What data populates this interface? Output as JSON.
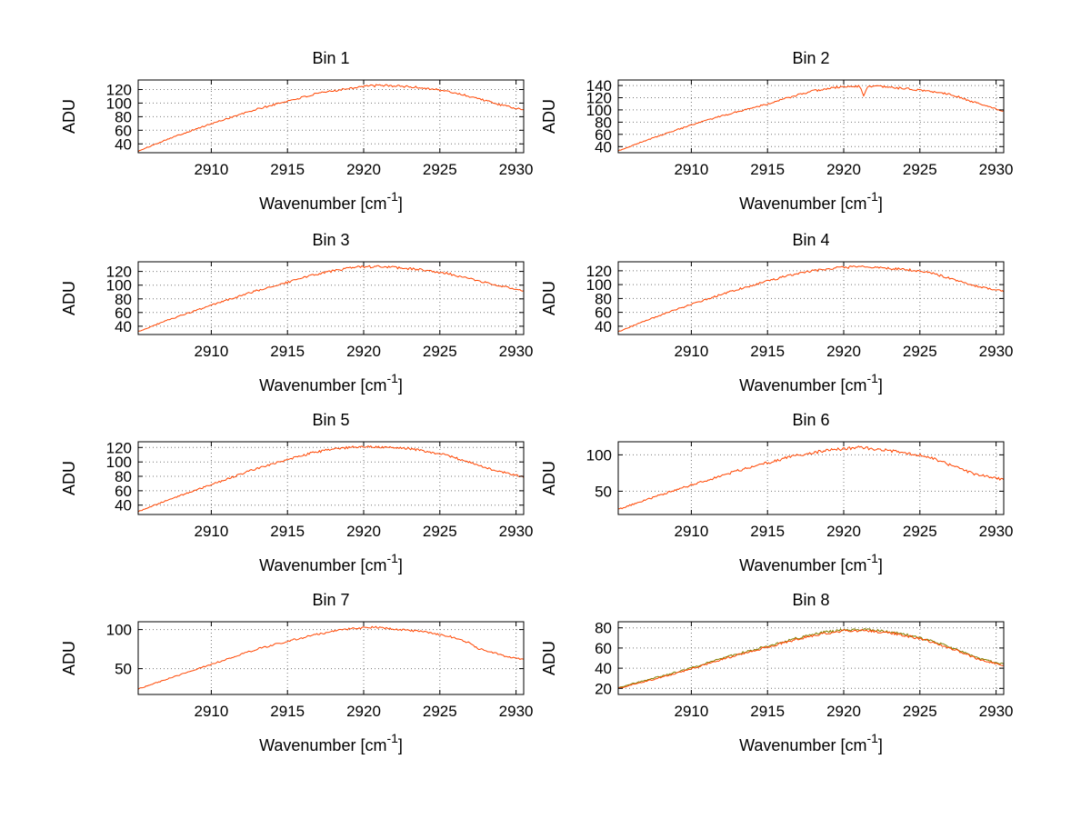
{
  "figure": {
    "background": "#ffffff",
    "axis_color": "#000000",
    "grid_color": "#777777",
    "line_color": "#ff4500",
    "ylabel": "ADU",
    "xlabel": {
      "main": "Wavenumber [cm",
      "sup": "-1",
      "close": "]"
    }
  },
  "chart_data": [
    {
      "type": "line",
      "title": "Bin 1",
      "xlabel": "Wavenumber [cm^-1]",
      "ylabel": "ADU",
      "x_range": [
        2905.2,
        2930.5
      ],
      "y_range": [
        27,
        134
      ],
      "x_ticks": [
        2910,
        2915,
        2920,
        2925,
        2930
      ],
      "y_ticks": [
        40,
        60,
        80,
        100,
        120
      ],
      "grid": true,
      "series": [
        {
          "name": "spectrum",
          "color": "#ff4500",
          "noise": 1.8,
          "seed": 101,
          "keypoints": [
            [
              2905.2,
              29
            ],
            [
              2907,
              46
            ],
            [
              2909,
              62
            ],
            [
              2911,
              77
            ],
            [
              2913,
              91
            ],
            [
              2915,
              103
            ],
            [
              2917,
              114
            ],
            [
              2918.5,
              120
            ],
            [
              2920,
              125
            ],
            [
              2921.5,
              126
            ],
            [
              2923,
              124
            ],
            [
              2924.5,
              121
            ],
            [
              2926,
              115
            ],
            [
              2927.5,
              107
            ],
            [
              2929,
              97
            ],
            [
              2930.5,
              90
            ]
          ]
        }
      ]
    },
    {
      "type": "line",
      "title": "Bin 2",
      "xlabel": "Wavenumber [cm^-1]",
      "ylabel": "ADU",
      "x_range": [
        2905.2,
        2930.5
      ],
      "y_range": [
        30,
        149
      ],
      "x_ticks": [
        2910,
        2915,
        2920,
        2925,
        2930
      ],
      "y_ticks": [
        40,
        60,
        80,
        100,
        120,
        140
      ],
      "grid": true,
      "series": [
        {
          "name": "spectrum",
          "color": "#ff4500",
          "noise": 1.8,
          "seed": 202,
          "keypoints": [
            [
              2905.2,
              33
            ],
            [
              2907,
              50
            ],
            [
              2909,
              67
            ],
            [
              2911,
              83
            ],
            [
              2913,
              97
            ],
            [
              2915,
              110
            ],
            [
              2916.5,
              121
            ],
            [
              2918,
              131
            ],
            [
              2919.5,
              137
            ],
            [
              2921,
              139
            ],
            [
              2922.5,
              138
            ],
            [
              2924,
              135
            ],
            [
              2925.5,
              131
            ],
            [
              2927,
              126
            ],
            [
              2928.5,
              113
            ],
            [
              2930.5,
              98
            ]
          ],
          "spikes": [
            {
              "x": 2921.3,
              "dy": -17,
              "width": 0.25
            }
          ]
        }
      ]
    },
    {
      "type": "line",
      "title": "Bin 3",
      "xlabel": "Wavenumber [cm^-1]",
      "ylabel": "ADU",
      "x_range": [
        2905.2,
        2930.5
      ],
      "y_range": [
        28,
        134
      ],
      "x_ticks": [
        2910,
        2915,
        2920,
        2925,
        2930
      ],
      "y_ticks": [
        40,
        60,
        80,
        100,
        120
      ],
      "grid": true,
      "series": [
        {
          "name": "spectrum",
          "color": "#ff4500",
          "noise": 1.8,
          "seed": 303,
          "keypoints": [
            [
              2905.2,
              32
            ],
            [
              2907,
              48
            ],
            [
              2909,
              63
            ],
            [
              2911,
              78
            ],
            [
              2913,
              92
            ],
            [
              2915,
              104
            ],
            [
              2916.5,
              114
            ],
            [
              2918,
              121
            ],
            [
              2919.5,
              126
            ],
            [
              2921,
              127
            ],
            [
              2922.5,
              125
            ],
            [
              2924,
              122
            ],
            [
              2925.5,
              117
            ],
            [
              2927,
              109
            ],
            [
              2928.5,
              101
            ],
            [
              2930.5,
              92
            ]
          ]
        }
      ]
    },
    {
      "type": "line",
      "title": "Bin 4",
      "xlabel": "Wavenumber [cm^-1]",
      "ylabel": "ADU",
      "x_range": [
        2905.2,
        2930.5
      ],
      "y_range": [
        28,
        133
      ],
      "x_ticks": [
        2910,
        2915,
        2920,
        2925,
        2930
      ],
      "y_ticks": [
        40,
        60,
        80,
        100,
        120
      ],
      "grid": true,
      "series": [
        {
          "name": "spectrum",
          "color": "#ff4500",
          "noise": 1.8,
          "seed": 404,
          "keypoints": [
            [
              2905.2,
              32
            ],
            [
              2907,
              48
            ],
            [
              2909,
              64
            ],
            [
              2911,
              79
            ],
            [
              2913,
              93
            ],
            [
              2915,
              105
            ],
            [
              2916.5,
              114
            ],
            [
              2918,
              120
            ],
            [
              2919.5,
              124
            ],
            [
              2921,
              126
            ],
            [
              2922.5,
              124
            ],
            [
              2924,
              122
            ],
            [
              2925.5,
              118
            ],
            [
              2927,
              109
            ],
            [
              2928.5,
              99
            ],
            [
              2930.5,
              90
            ]
          ]
        }
      ]
    },
    {
      "type": "line",
      "title": "Bin 5",
      "xlabel": "Wavenumber [cm^-1]",
      "ylabel": "ADU",
      "x_range": [
        2905.2,
        2930.5
      ],
      "y_range": [
        27,
        128
      ],
      "x_ticks": [
        2910,
        2915,
        2920,
        2925,
        2930
      ],
      "y_ticks": [
        40,
        60,
        80,
        100,
        120
      ],
      "grid": true,
      "series": [
        {
          "name": "spectrum",
          "color": "#ff4500",
          "noise": 1.8,
          "seed": 505,
          "keypoints": [
            [
              2905.2,
              31
            ],
            [
              2907,
              46
            ],
            [
              2909,
              61
            ],
            [
              2911,
              76
            ],
            [
              2913,
              91
            ],
            [
              2915,
              103
            ],
            [
              2916.5,
              112
            ],
            [
              2918,
              118
            ],
            [
              2919.5,
              121
            ],
            [
              2921,
              121
            ],
            [
              2922.5,
              120
            ],
            [
              2924,
              115
            ],
            [
              2925.5,
              109
            ],
            [
              2927,
              99
            ],
            [
              2928.5,
              89
            ],
            [
              2930.5,
              79
            ]
          ]
        }
      ]
    },
    {
      "type": "line",
      "title": "Bin 6",
      "xlabel": "Wavenumber [cm^-1]",
      "ylabel": "ADU",
      "x_range": [
        2905.2,
        2930.5
      ],
      "y_range": [
        18,
        118
      ],
      "x_ticks": [
        2910,
        2915,
        2920,
        2925,
        2930
      ],
      "y_ticks": [
        50,
        100
      ],
      "grid": true,
      "series": [
        {
          "name": "spectrum",
          "color": "#ff4500",
          "noise": 2.4,
          "seed": 606,
          "keypoints": [
            [
              2905.2,
              25
            ],
            [
              2907,
              38
            ],
            [
              2909,
              52
            ],
            [
              2911,
              65
            ],
            [
              2913,
              78
            ],
            [
              2915,
              89
            ],
            [
              2916.5,
              97
            ],
            [
              2918,
              103
            ],
            [
              2919.5,
              108
            ],
            [
              2921,
              110
            ],
            [
              2922.5,
              107
            ],
            [
              2924,
              103
            ],
            [
              2925.5,
              98
            ],
            [
              2927,
              86
            ],
            [
              2928.5,
              74
            ],
            [
              2930.5,
              66
            ]
          ]
        }
      ]
    },
    {
      "type": "line",
      "title": "Bin 7",
      "xlabel": "Wavenumber [cm^-1]",
      "ylabel": "ADU",
      "x_range": [
        2905.2,
        2930.5
      ],
      "y_range": [
        17,
        110
      ],
      "x_ticks": [
        2910,
        2915,
        2920,
        2925,
        2930
      ],
      "y_ticks": [
        50,
        100
      ],
      "grid": true,
      "series": [
        {
          "name": "spectrum",
          "color": "#ff4500",
          "noise": 1.4,
          "seed": 707,
          "keypoints": [
            [
              2905.2,
              24
            ],
            [
              2907,
              36
            ],
            [
              2909,
              49
            ],
            [
              2911,
              62
            ],
            [
              2913,
              75
            ],
            [
              2915,
              85
            ],
            [
              2916.5,
              92
            ],
            [
              2918,
              98
            ],
            [
              2919.5,
              102
            ],
            [
              2921,
              103
            ],
            [
              2922.5,
              100
            ],
            [
              2924,
              97
            ],
            [
              2925.5,
              92
            ],
            [
              2926.8,
              84
            ],
            [
              2927.6,
              75
            ],
            [
              2928.4,
              71
            ],
            [
              2929.5,
              65
            ],
            [
              2930.5,
              62
            ]
          ]
        }
      ]
    },
    {
      "type": "line",
      "title": "Bin 8",
      "xlabel": "Wavenumber [cm^-1]",
      "ylabel": "ADU",
      "x_range": [
        2905.2,
        2930.5
      ],
      "y_range": [
        14,
        86
      ],
      "x_ticks": [
        2910,
        2915,
        2920,
        2925,
        2930
      ],
      "y_ticks": [
        20,
        40,
        60,
        80
      ],
      "grid": true,
      "series": [
        {
          "name": "spectrum-secondary",
          "color": "#808000",
          "noise": 1.4,
          "seed": 809,
          "keypoints": [
            [
              2905.2,
              21
            ],
            [
              2907,
              28
            ],
            [
              2909,
              36
            ],
            [
              2911,
              45
            ],
            [
              2913,
              54
            ],
            [
              2915,
              62
            ],
            [
              2917,
              70
            ],
            [
              2918.5,
              75
            ],
            [
              2920,
              78
            ],
            [
              2921.5,
              78
            ],
            [
              2923,
              76
            ],
            [
              2924.5,
              72
            ],
            [
              2926,
              66
            ],
            [
              2927.5,
              58
            ],
            [
              2929,
              49
            ],
            [
              2930.5,
              44
            ]
          ]
        },
        {
          "name": "spectrum",
          "color": "#ff4500",
          "noise": 1.4,
          "seed": 808,
          "keypoints": [
            [
              2905.2,
              20
            ],
            [
              2907,
              27
            ],
            [
              2909,
              35
            ],
            [
              2911,
              44
            ],
            [
              2913,
              53
            ],
            [
              2915,
              61
            ],
            [
              2917,
              69
            ],
            [
              2918.5,
              74
            ],
            [
              2920,
              77
            ],
            [
              2921.5,
              77
            ],
            [
              2923,
              75
            ],
            [
              2924.5,
              71
            ],
            [
              2926,
              65
            ],
            [
              2927.5,
              57
            ],
            [
              2929,
              48
            ],
            [
              2930.5,
              43
            ]
          ]
        }
      ]
    }
  ]
}
